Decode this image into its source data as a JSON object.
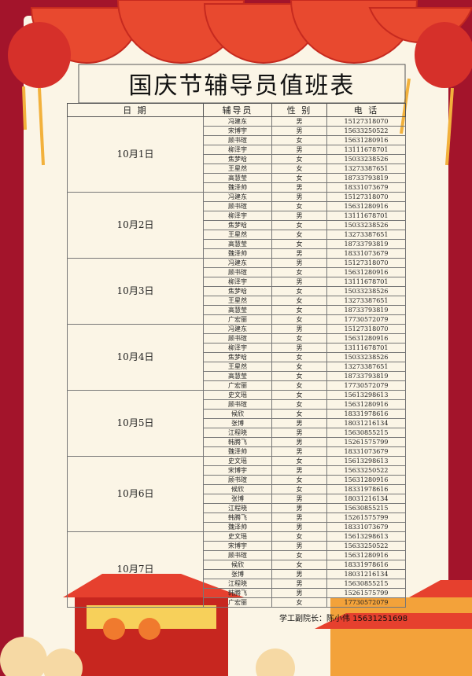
{
  "header": {
    "title": "国庆节辅导员值班表"
  },
  "table": {
    "columns": [
      "日 期",
      "辅导员",
      "性 别",
      "电 话"
    ],
    "groups": [
      {
        "date": "10月1日",
        "rows": [
          [
            "冯建东",
            "男",
            "15127318070"
          ],
          [
            "宋博宇",
            "男",
            "15633250522"
          ],
          [
            "顾书瑄",
            "女",
            "15631280916"
          ],
          [
            "柳泽宇",
            "男",
            "13111678701"
          ],
          [
            "焦梦晗",
            "女",
            "15033238526"
          ],
          [
            "王星然",
            "女",
            "13273387651"
          ],
          [
            "高慧莹",
            "女",
            "18733793819"
          ],
          [
            "魏泽帅",
            "男",
            "18331073679"
          ]
        ]
      },
      {
        "date": "10月2日",
        "rows": [
          [
            "冯建东",
            "男",
            "15127318070"
          ],
          [
            "顾书瑄",
            "女",
            "15631280916"
          ],
          [
            "柳泽宇",
            "男",
            "13111678701"
          ],
          [
            "焦梦晗",
            "女",
            "15033238526"
          ],
          [
            "王星然",
            "女",
            "13273387651"
          ],
          [
            "高慧莹",
            "女",
            "18733793819"
          ],
          [
            "魏泽帅",
            "男",
            "18331073679"
          ]
        ]
      },
      {
        "date": "10月3日",
        "rows": [
          [
            "冯建东",
            "男",
            "15127318070"
          ],
          [
            "顾书瑄",
            "女",
            "15631280916"
          ],
          [
            "柳泽宇",
            "男",
            "13111678701"
          ],
          [
            "焦梦晗",
            "女",
            "15033238526"
          ],
          [
            "王星然",
            "女",
            "13273387651"
          ],
          [
            "高慧莹",
            "女",
            "18733793819"
          ],
          [
            "广宏丽",
            "女",
            "17730572079"
          ]
        ]
      },
      {
        "date": "10月4日",
        "rows": [
          [
            "冯建东",
            "男",
            "15127318070"
          ],
          [
            "顾书瑄",
            "女",
            "15631280916"
          ],
          [
            "柳泽宇",
            "男",
            "13111678701"
          ],
          [
            "焦梦晗",
            "女",
            "15033238526"
          ],
          [
            "王星然",
            "女",
            "13273387651"
          ],
          [
            "高慧莹",
            "女",
            "18733793819"
          ],
          [
            "广宏丽",
            "女",
            "17730572079"
          ]
        ]
      },
      {
        "date": "10月5日",
        "rows": [
          [
            "史文瑶",
            "女",
            "15613298613"
          ],
          [
            "顾书瑄",
            "女",
            "15631280916"
          ],
          [
            "候欣",
            "女",
            "18331978616"
          ],
          [
            "张博",
            "男",
            "18031216134"
          ],
          [
            "江程晓",
            "男",
            "15630855215"
          ],
          [
            "韩腾飞",
            "男",
            "15261575799"
          ],
          [
            "魏泽帅",
            "男",
            "18331073679"
          ]
        ]
      },
      {
        "date": "10月6日",
        "rows": [
          [
            "史文瑶",
            "女",
            "15613298613"
          ],
          [
            "宋博宇",
            "男",
            "15633250522"
          ],
          [
            "顾书瑄",
            "女",
            "15631280916"
          ],
          [
            "候欣",
            "女",
            "18331978616"
          ],
          [
            "张博",
            "男",
            "18031216134"
          ],
          [
            "江程晓",
            "男",
            "15630855215"
          ],
          [
            "韩腾飞",
            "男",
            "15261575799"
          ],
          [
            "魏泽帅",
            "男",
            "18331073679"
          ]
        ]
      },
      {
        "date": "10月7日",
        "rows": [
          [
            "史文瑶",
            "女",
            "15613298613"
          ],
          [
            "宋博宇",
            "男",
            "15633250522"
          ],
          [
            "顾书瑄",
            "女",
            "15631280916"
          ],
          [
            "候欣",
            "女",
            "18331978616"
          ],
          [
            "张博",
            "男",
            "18031216134"
          ],
          [
            "江程晓",
            "男",
            "15630855215"
          ],
          [
            "韩腾飞",
            "男",
            "15261575799"
          ],
          [
            "广宏丽",
            "女",
            "17730572079"
          ]
        ]
      }
    ]
  },
  "footer": {
    "signature": "学工副院长：陈小伟 15631251698"
  }
}
